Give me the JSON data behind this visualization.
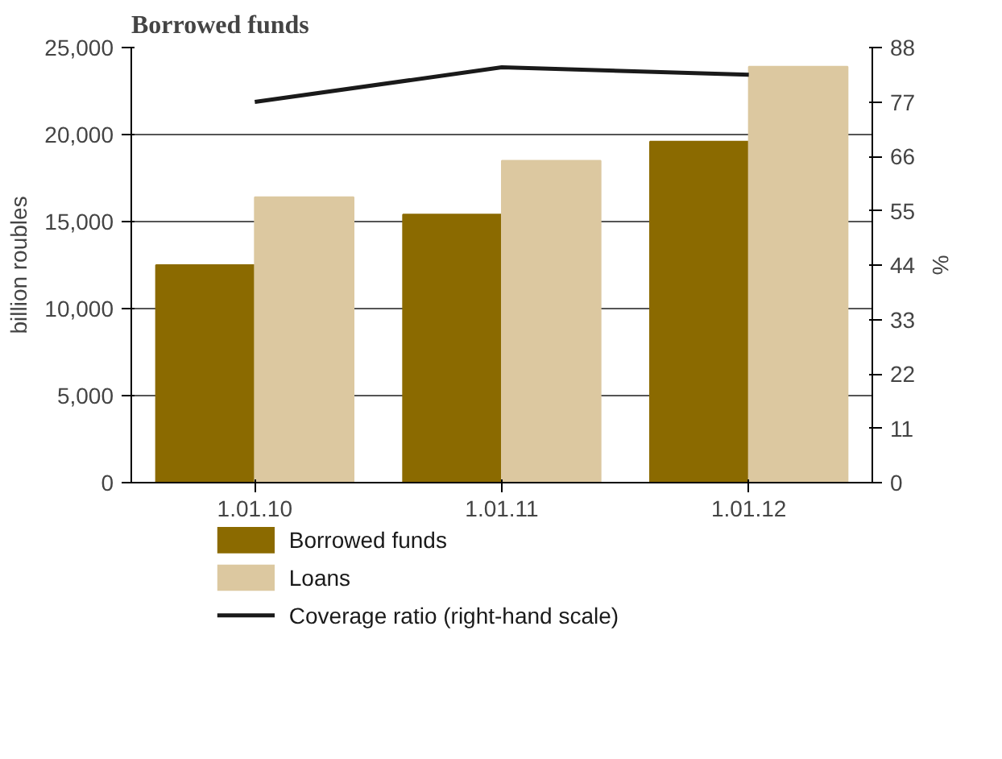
{
  "chart_data": {
    "type": "bar",
    "title": "Borrowed funds",
    "ylabel": "billion roubles",
    "y2label": "%",
    "categories": [
      "1.01.10",
      "1.01.11",
      "1.01.12"
    ],
    "series": [
      {
        "name": "Borrowed funds",
        "color": "#8b6a00",
        "values": [
          12500,
          15400,
          19600
        ]
      },
      {
        "name": "Loans",
        "color": "#dcc8a0",
        "values": [
          16400,
          18500,
          23900
        ]
      },
      {
        "name": "Coverage ratio (right-hand scale)",
        "color": "#1a1a1a",
        "type": "line",
        "axis": "y2",
        "values": [
          77,
          84,
          82.5
        ]
      }
    ],
    "ylim": [
      0,
      25000
    ],
    "yticks": [
      {
        "value": 0,
        "label": "0"
      },
      {
        "value": 5000,
        "label": "5,000"
      },
      {
        "value": 10000,
        "label": "10,000"
      },
      {
        "value": 15000,
        "label": "15,000"
      },
      {
        "value": 20000,
        "label": "20,000"
      },
      {
        "value": 25000,
        "label": "25,000"
      }
    ],
    "y2lim": [
      0,
      88
    ],
    "y2ticks": [
      0,
      11,
      22,
      33,
      44,
      55,
      66,
      77,
      88
    ],
    "grid": "y",
    "legend": "bottom"
  }
}
